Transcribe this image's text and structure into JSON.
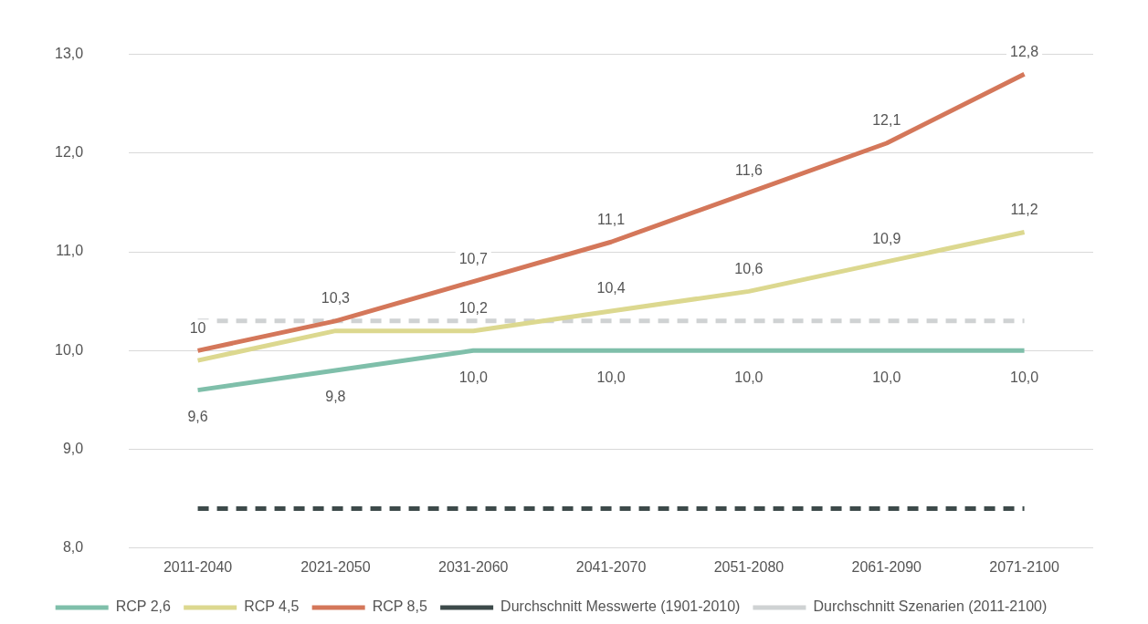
{
  "chart_data": {
    "type": "line",
    "categories": [
      "2011-2040",
      "2021-2050",
      "2031-2060",
      "2041-2070",
      "2051-2080",
      "2061-2090",
      "2071-2100"
    ],
    "ylim": [
      8,
      13
    ],
    "yticks": [
      {
        "value": 8,
        "label": "8,0"
      },
      {
        "value": 9,
        "label": "9,0"
      },
      {
        "value": 10,
        "label": "10,0"
      },
      {
        "value": 11,
        "label": "11,0"
      },
      {
        "value": 12,
        "label": "12,0"
      },
      {
        "value": 13,
        "label": "13,0"
      }
    ],
    "grid": "y",
    "legend": "bottom",
    "marker": "none",
    "line_style": "solid",
    "series": [
      {
        "name": "RCP 2,6",
        "color": "#7fbfaa",
        "values": [
          9.6,
          9.8,
          10.0,
          10.0,
          10.0,
          10.0,
          10.0
        ],
        "value_labels": [
          "9,6",
          "9,8",
          "10,0",
          "10,0",
          "10,0",
          "10,0",
          "10,0"
        ]
      },
      {
        "name": "RCP 4,5",
        "color": "#dcd88f",
        "values": [
          9.9,
          10.2,
          10.2,
          10.4,
          10.6,
          10.9,
          11.2
        ],
        "value_labels": [
          null,
          null,
          "10,2",
          "10,4",
          "10,6",
          "10,9",
          "11,2"
        ]
      },
      {
        "name": "RCP 8,5",
        "color": "#d4775a",
        "values": [
          10.0,
          10.3,
          10.7,
          11.1,
          11.6,
          12.1,
          12.8
        ],
        "value_labels": [
          "10",
          "10,3",
          "10,7",
          "11,1",
          "11,6",
          "12,1",
          "12,8"
        ]
      },
      {
        "name": "Durchschnitt Messwerte (1901-2010)",
        "color": "#3d4a4a",
        "line_style": "dashed",
        "values": [
          8.4,
          8.4,
          8.4,
          8.4,
          8.4,
          8.4,
          8.4
        ]
      },
      {
        "name": "Durchschnitt Szenarien (2011-2100)",
        "color": "#cfd2d3",
        "line_style": "dashed",
        "values": [
          10.3,
          10.3,
          10.3,
          10.3,
          10.3,
          10.3,
          10.3
        ]
      }
    ]
  }
}
